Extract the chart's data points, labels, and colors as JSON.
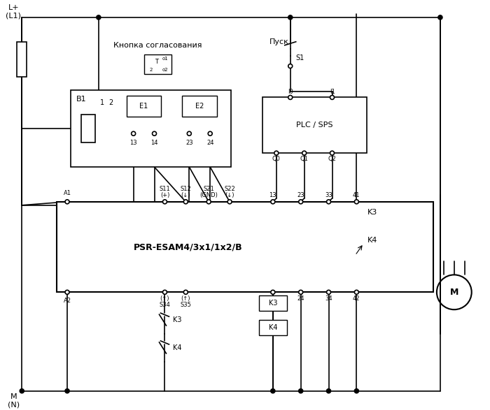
{
  "title": "",
  "bg_color": "#ffffff",
  "line_color": "#000000",
  "fig_width": 7.0,
  "fig_height": 5.87,
  "dpi": 100,
  "label_L_plus": "L+\n(L1)",
  "label_M_N": "M\n(N)",
  "label_B1": "B1",
  "label_psr": "PSR-ESAM4/3x1/1x2/B",
  "label_plc": "PLC / SPS",
  "label_knopka": "Кнопка согласования",
  "label_pusk": "Пуск",
  "label_S1": "S1",
  "label_K3_right": "K3",
  "label_K4_right": "K4",
  "label_M": "M",
  "label_A1": "A1",
  "label_A2": "A2",
  "label_S11": "S11\n(+)",
  "label_S12": "S12\n(↓)",
  "label_S21": "S21\n(GND)",
  "label_S22": "S22\n(↓)",
  "label_S34": "S34\n(↑)",
  "label_S35": "S35\n(↑)",
  "label_13": "13",
  "label_14": "14",
  "label_23": "23",
  "label_24": "24",
  "label_33": "33",
  "label_34": "34",
  "label_41": "41",
  "label_42": "42",
  "label_I0": "I0",
  "label_I1": "I1",
  "label_Q0": "Q0",
  "label_Q1": "Q1",
  "label_Q2": "Q2",
  "label_E1_13": "13",
  "label_E1_14": "14",
  "label_E2_23": "23",
  "label_E2_24": "24",
  "label_E1": "E1",
  "label_E2": "E2",
  "label_1": "1",
  "label_2": "2",
  "label_K3_coil": "K3",
  "label_K4_coil": "K4",
  "label_K3_box": "K3",
  "label_K4_box": "K4"
}
